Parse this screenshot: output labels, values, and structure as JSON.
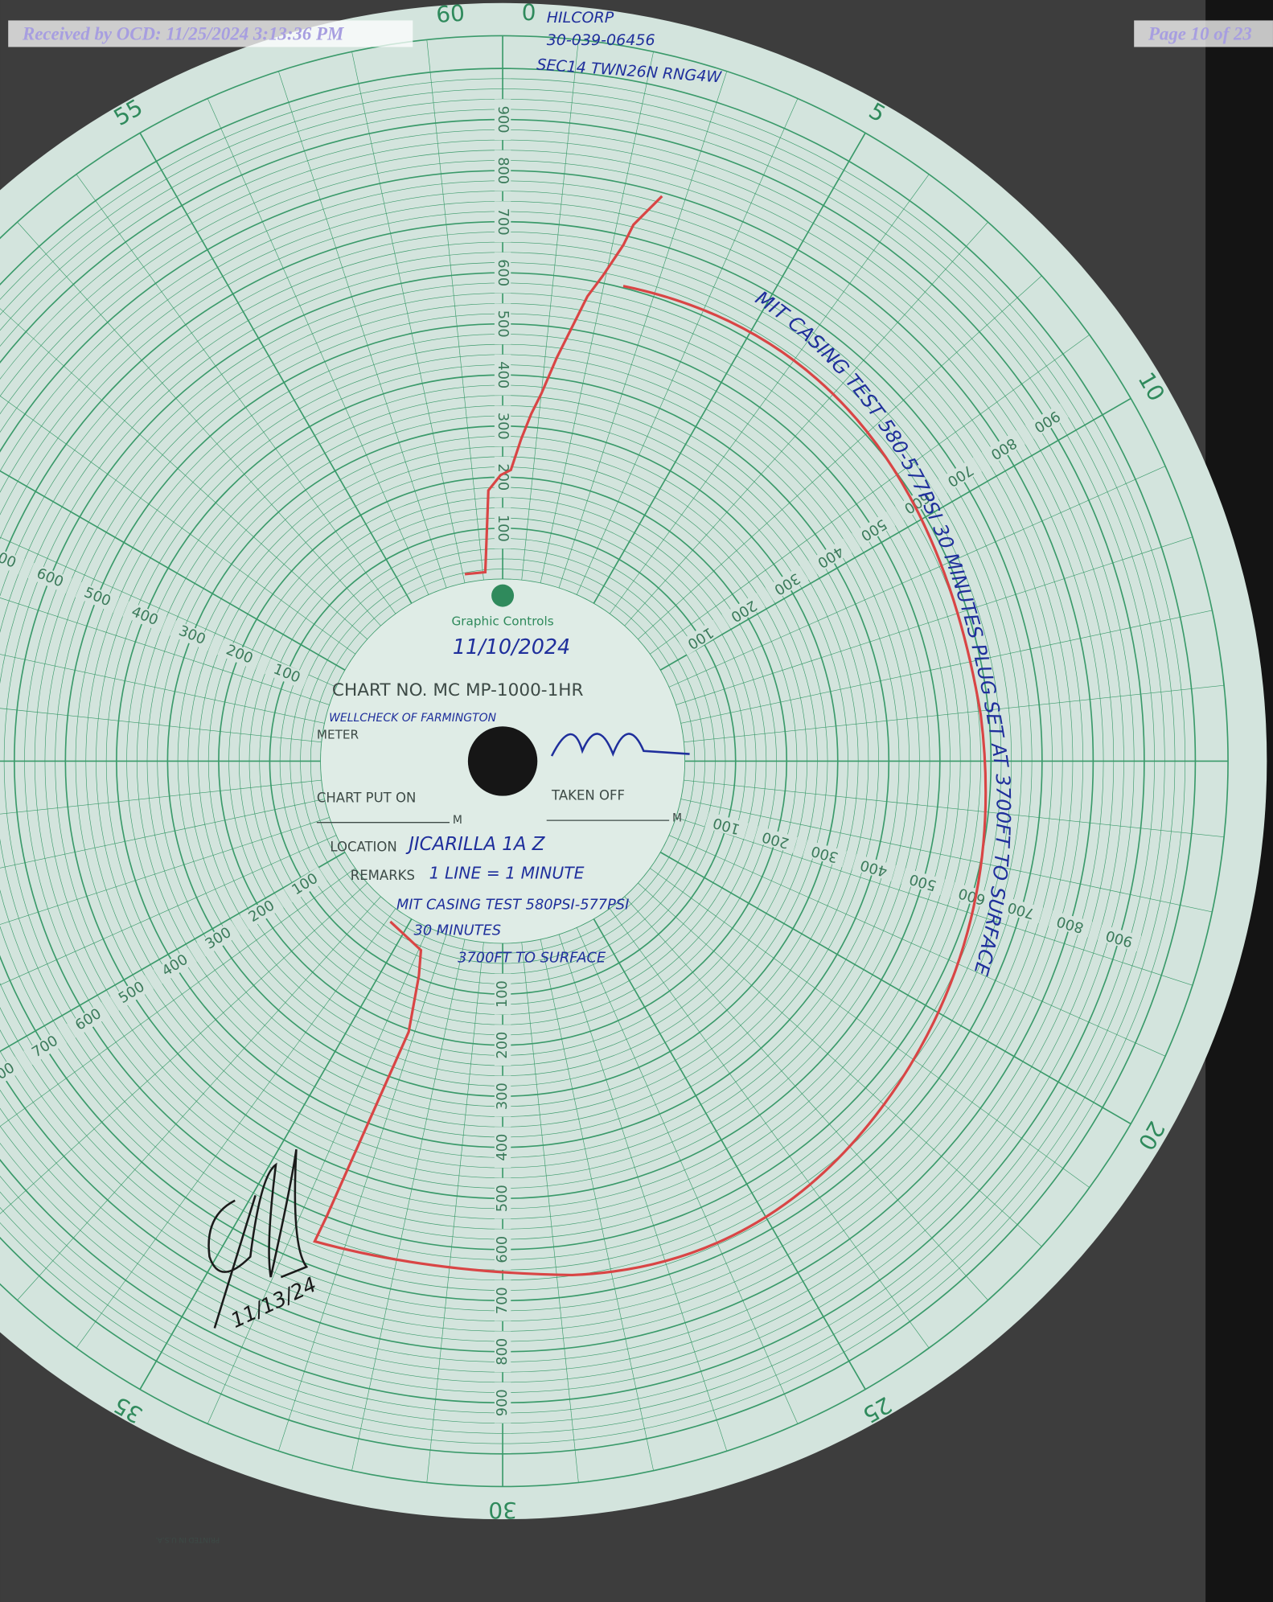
{
  "header": {
    "received": "Received by OCD: 11/25/2024 3:13:36 PM",
    "page": "Page 10 of 23"
  },
  "chart": {
    "brand": "Graphic Controls",
    "chart_no": "CHART NO. MC MP-1000-1HR",
    "meter": "METER",
    "put_on": "CHART PUT ON",
    "taken_off": "TAKEN OFF",
    "m": "M",
    "location": "LOCATION",
    "remarks": "REMARKS",
    "printed": "PRINTED IN U.S.A.",
    "minute_labels": [
      "60",
      "0",
      "5",
      "10",
      "20",
      "25",
      "30",
      "35",
      "55"
    ],
    "pressure_labels": [
      "100",
      "200",
      "300",
      "400",
      "500",
      "600",
      "700",
      "800",
      "900"
    ]
  },
  "handwriting": {
    "operator": "HILCORP",
    "api": "30-039-06456",
    "legal": "SEC14 TWN26N RNG4W",
    "date": "11/10/2024",
    "meter_name": "WELLCHECK OF FARMINGTON",
    "location": "JICARILLA 1A Z",
    "remarks": "1 LINE = 1 MINUTE",
    "note_1": "MIT CASING TEST 580PSI-577PSI",
    "note_2": "30 MINUTES",
    "note_3": "3700FT TO SURFACE",
    "side_note": "MIT CASING TEST 580-577PSI 30 MINUTES PLUG SET AT 3700FT TO SURFACE",
    "sign_date": "11/13/24"
  }
}
